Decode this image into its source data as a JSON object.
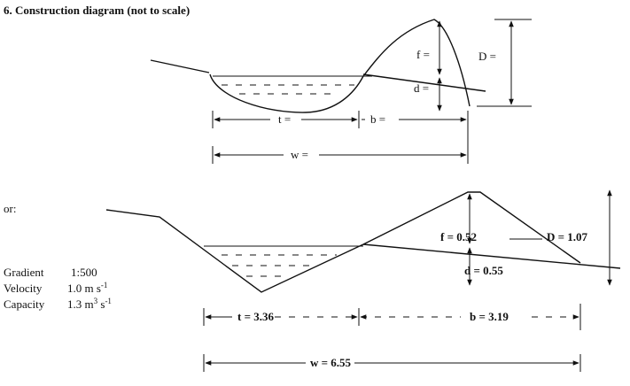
{
  "header": {
    "title": "6. Construction diagram (not to scale)"
  },
  "top_diagram": {
    "f": "f =",
    "D": "D =",
    "d": "d =",
    "t": "t =",
    "b": "b =",
    "w": "w ="
  },
  "alternative": "or:",
  "parameters": [
    {
      "label": "Gradient",
      "parts": [
        "1:500"
      ]
    },
    {
      "label": "Velocity",
      "parts": [
        "1.0 m s",
        "-1"
      ]
    },
    {
      "label": "Capacity",
      "parts": [
        "1.3 m",
        "3",
        " s",
        "-1"
      ]
    }
  ],
  "bottom_diagram": {
    "f": "f = 0.52",
    "D": "D = 1.07",
    "d": "d = 0.55",
    "t": "t = 3.36",
    "b": "b = 3.19",
    "w": "w = 6.55"
  }
}
